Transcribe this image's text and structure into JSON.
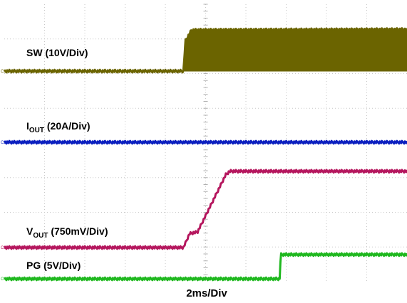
{
  "chart_data": {
    "type": "line",
    "title": "",
    "xlabel": "2ms/Div",
    "ylabel": "",
    "grid": true,
    "legend": "none",
    "x_divisions": 10,
    "y_divisions": 8,
    "x_unit": "ms",
    "x_range": [
      0,
      20
    ],
    "series": [
      {
        "name": "SW (10V/Div)",
        "label_main": "SW (10V/Div)",
        "label_sub": "",
        "label_rest": "",
        "color": "#6b6400",
        "channel": "C1",
        "filled_burst": true,
        "points": [
          [
            0,
            0
          ],
          [
            8.9,
            0
          ],
          [
            9.0,
            0.88
          ],
          [
            9.3,
            1.18
          ],
          [
            20,
            1.2
          ]
        ]
      },
      {
        "name": "IOUT (20A/Div)",
        "label_main": "I",
        "label_sub": "OUT",
        "label_rest": " (20A/Div)",
        "color": "#0b1fbf",
        "channel": "C2",
        "filled_burst": false,
        "points": [
          [
            0,
            0
          ],
          [
            20,
            0
          ]
        ]
      },
      {
        "name": "VOUT (750mV/Div)",
        "label_main": "V",
        "label_sub": "OUT",
        "label_rest": " (750mV/Div)",
        "color": "#b5175e",
        "channel": "C3",
        "filled_burst": false,
        "points": [
          [
            0,
            0
          ],
          [
            8.9,
            0
          ],
          [
            9.2,
            0.4
          ],
          [
            9.6,
            0.45
          ],
          [
            11.0,
            2.1
          ],
          [
            11.2,
            2.2
          ],
          [
            20,
            2.2
          ]
        ]
      },
      {
        "name": "PG (5V/Div)",
        "label_main": "PG (5V/Div)",
        "label_sub": "",
        "label_rest": "",
        "color": "#1fb81f",
        "channel": "C4",
        "filled_burst": false,
        "points": [
          [
            0,
            0
          ],
          [
            13.7,
            0
          ],
          [
            13.72,
            0.7
          ],
          [
            20,
            0.7
          ]
        ]
      }
    ]
  }
}
